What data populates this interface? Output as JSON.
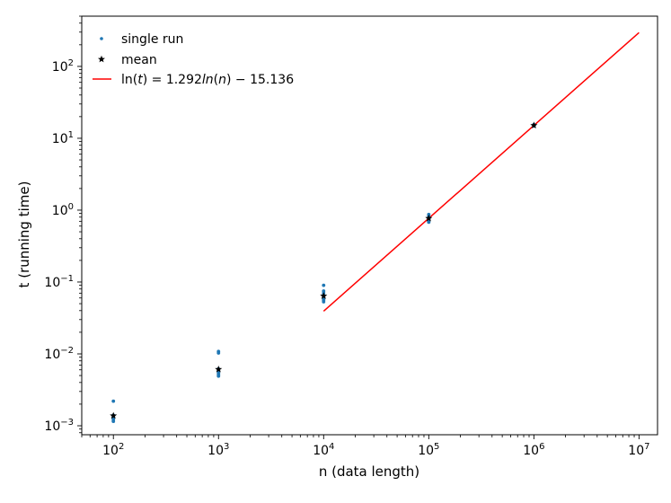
{
  "chart_data": {
    "type": "scatter",
    "title": "",
    "xlabel": "n (data length)",
    "ylabel": "t (running time)",
    "xscale": "log",
    "yscale": "log",
    "xlim": [
      50,
      15000000
    ],
    "ylim": [
      0.00075,
      500
    ],
    "grid": false,
    "legend_position": "top-left",
    "x_ticks": [
      {
        "value": 100,
        "base": "10",
        "exp": "2"
      },
      {
        "value": 1000,
        "base": "10",
        "exp": "3"
      },
      {
        "value": 10000,
        "base": "10",
        "exp": "4"
      },
      {
        "value": 100000,
        "base": "10",
        "exp": "5"
      },
      {
        "value": 1000000,
        "base": "10",
        "exp": "6"
      },
      {
        "value": 10000000,
        "base": "10",
        "exp": "7"
      }
    ],
    "y_ticks": [
      {
        "value": 0.001,
        "base": "10",
        "exp": "−3"
      },
      {
        "value": 0.01,
        "base": "10",
        "exp": "−2"
      },
      {
        "value": 0.1,
        "base": "10",
        "exp": "−1"
      },
      {
        "value": 1,
        "base": "10",
        "exp": "0"
      },
      {
        "value": 10,
        "base": "10",
        "exp": "1"
      },
      {
        "value": 100,
        "base": "10",
        "exp": "2"
      }
    ],
    "series": [
      {
        "name": "single run",
        "kind": "points",
        "color": "#1f77b4",
        "points": [
          [
            100,
            0.0022
          ],
          [
            100,
            0.0014
          ],
          [
            100,
            0.0013
          ],
          [
            100,
            0.00125
          ],
          [
            100,
            0.0012
          ],
          [
            100,
            0.00115
          ],
          [
            100,
            0.00135
          ],
          [
            100,
            0.00128
          ],
          [
            1000,
            0.0108
          ],
          [
            1000,
            0.0103
          ],
          [
            1000,
            0.0062
          ],
          [
            1000,
            0.0057
          ],
          [
            1000,
            0.0053
          ],
          [
            1000,
            0.0051
          ],
          [
            1000,
            0.0049
          ],
          [
            1000,
            0.0055
          ],
          [
            10000,
            0.09
          ],
          [
            10000,
            0.075
          ],
          [
            10000,
            0.07
          ],
          [
            10000,
            0.065
          ],
          [
            10000,
            0.06
          ],
          [
            10000,
            0.056
          ],
          [
            10000,
            0.053
          ],
          [
            10000,
            0.058
          ],
          [
            100000,
            0.87
          ],
          [
            100000,
            0.82
          ],
          [
            100000,
            0.79
          ],
          [
            100000,
            0.76
          ],
          [
            100000,
            0.73
          ],
          [
            100000,
            0.7
          ],
          [
            100000,
            0.68
          ],
          [
            1000000,
            15.5
          ],
          [
            1000000,
            15.1
          ],
          [
            1000000,
            14.8
          ]
        ]
      },
      {
        "name": "mean",
        "kind": "stars",
        "color": "#000000",
        "points": [
          [
            100,
            0.00138
          ],
          [
            1000,
            0.0061
          ],
          [
            10000,
            0.064
          ],
          [
            100000,
            0.77
          ],
          [
            1000000,
            15.1
          ]
        ]
      },
      {
        "name": "fit",
        "legend_label": {
          "pre": "ln(",
          "t": "t",
          "mid": ") = 1.292",
          "ln": "ln",
          "open": "(",
          "n": "n",
          "post": ") − 15.136"
        },
        "kind": "line",
        "color": "#ff0000",
        "intercept": -15.136,
        "slope": 1.292,
        "x_range": [
          10000,
          10000000
        ]
      }
    ]
  }
}
